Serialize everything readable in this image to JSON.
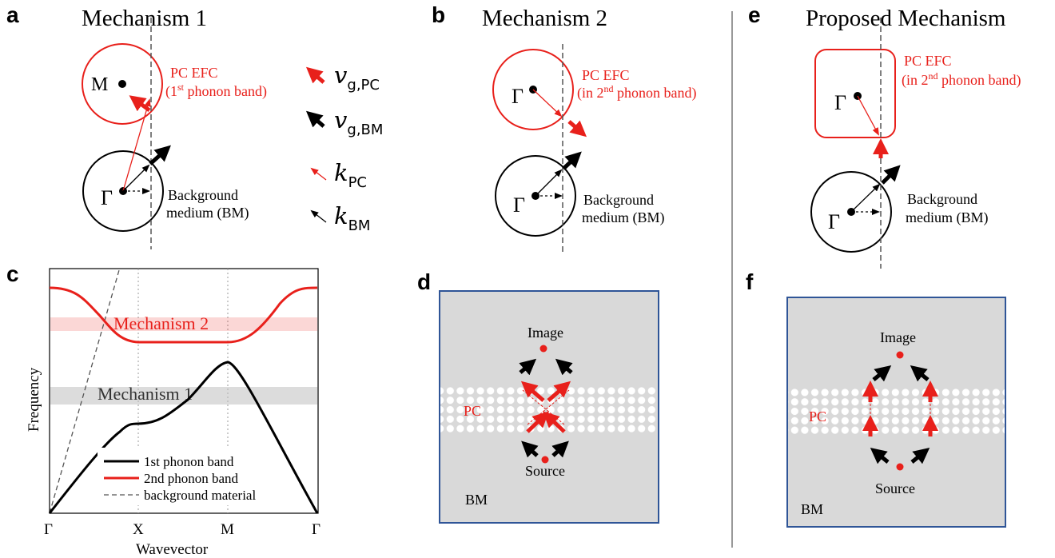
{
  "colors": {
    "red": "#e8201b",
    "black": "#000000",
    "panel_bg": "#d9d9d9",
    "panel_border": "#2f5597",
    "pc_hole": "#ffffff"
  },
  "panel_a": {
    "label": "a",
    "title": "Mechanism 1",
    "point_upper": "M",
    "point_lower": "Γ",
    "efc_label_1": "PC EFC",
    "efc_label_2_pre": "(1",
    "efc_label_2_sup": "st",
    "efc_label_2_post": " phonon band)",
    "bm_label_1": "Background",
    "bm_label_2": "medium (BM)"
  },
  "legend_vectors": {
    "vg_pc": "v",
    "vg_pc_sub": "g,PC",
    "vg_bm": "v",
    "vg_bm_sub": "g,BM",
    "k_pc": "k",
    "k_pc_sub": "PC",
    "k_bm": "k",
    "k_bm_sub": "BM"
  },
  "panel_b": {
    "label": "b",
    "title": "Mechanism 2",
    "point_upper": "Γ",
    "point_lower": "Γ",
    "efc_label_1": "PC EFC",
    "efc_label_2_pre": "(in 2",
    "efc_label_2_sup": "nd",
    "efc_label_2_post": " phonon band)",
    "bm_label_1": "Background",
    "bm_label_2": "medium (BM)"
  },
  "panel_e": {
    "label": "e",
    "title": "Proposed Mechanism",
    "point_upper": "Γ",
    "point_lower": "Γ",
    "efc_label_1": "PC EFC",
    "efc_label_2_pre": "(in 2",
    "efc_label_2_sup": "nd",
    "efc_label_2_post": " phonon band)",
    "bm_label_1": "Background",
    "bm_label_2": "medium (BM)"
  },
  "panel_c": {
    "label": "c",
    "xlabel": "Wavevector",
    "ylabel": "Frequency",
    "xticks": [
      "Γ",
      "X",
      "M",
      "Γ"
    ],
    "band_mechanism_2": "Mechanism 2",
    "band_mechanism_1": "Mechanism 1",
    "legend": [
      "1st phonon band",
      "2nd phonon band",
      "background material"
    ]
  },
  "panel_d": {
    "label": "d",
    "image": "Image",
    "source": "Source",
    "pc": "PC",
    "bm": "BM"
  },
  "panel_f": {
    "label": "f",
    "image": "Image",
    "source": "Source",
    "pc": "PC",
    "bm": "BM"
  }
}
